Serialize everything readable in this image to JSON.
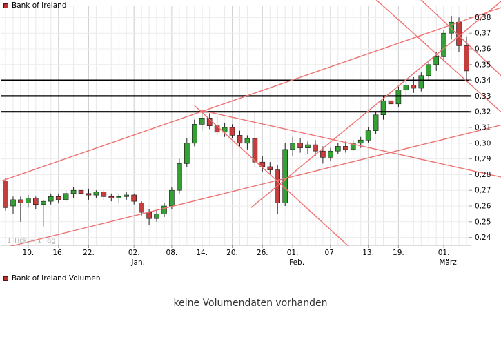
{
  "colors": {
    "up": "#35a135",
    "down": "#c43e3e",
    "wick": "#222222",
    "body_outline": "#1a1a1a",
    "grid_minor": "#e9e9e9",
    "grid_major": "#d2d2d2",
    "grid_horizontal": "#ececec",
    "axis_edge": "#bbbbbb",
    "level": "#000000",
    "trend": "#ee7272",
    "axis_text": "#000000",
    "note_text": "#b4b4b4",
    "swatch": "#bb2f2f"
  },
  "price_panel": {
    "legend": "Bank of Ireland",
    "tick_note": "1 Tick = 1 Tag"
  },
  "volume_panel": {
    "legend": "Bank of Ireland Volumen",
    "message": "keine Volumendaten vorhanden"
  },
  "chart_data": {
    "type": "candlestick",
    "title": "Bank of Ireland",
    "price_range": [
      0.235,
      0.385
    ],
    "grid": true,
    "legend_position": "top-left",
    "yticks": [
      {
        "v": 0.38,
        "label": "0,38"
      },
      {
        "v": 0.37,
        "label": "0,37"
      },
      {
        "v": 0.36,
        "label": "0,36"
      },
      {
        "v": 0.35,
        "label": "0,35"
      },
      {
        "v": 0.34,
        "label": "0,34"
      },
      {
        "v": 0.33,
        "label": "0,33"
      },
      {
        "v": 0.32,
        "label": "0,32"
      },
      {
        "v": 0.31,
        "label": "0,31"
      },
      {
        "v": 0.3,
        "label": "0,30"
      },
      {
        "v": 0.29,
        "label": "0,29"
      },
      {
        "v": 0.28,
        "label": "0,28"
      },
      {
        "v": 0.27,
        "label": "0,27"
      },
      {
        "v": 0.26,
        "label": "0,26"
      },
      {
        "v": 0.25,
        "label": "0,25"
      },
      {
        "v": 0.24,
        "label": "0,24"
      }
    ],
    "xticks": [
      {
        "i": 3,
        "label": "10."
      },
      {
        "i": 7,
        "label": "16."
      },
      {
        "i": 11,
        "label": "22."
      },
      {
        "i": 17,
        "label": "02.",
        "month": "Jan."
      },
      {
        "i": 22,
        "label": "08."
      },
      {
        "i": 26,
        "label": "14."
      },
      {
        "i": 30,
        "label": "20."
      },
      {
        "i": 34,
        "label": "26."
      },
      {
        "i": 38,
        "label": "01.",
        "month": "Feb."
      },
      {
        "i": 43,
        "label": "07."
      },
      {
        "i": 48,
        "label": "13."
      },
      {
        "i": 52,
        "label": "19."
      },
      {
        "i": 58,
        "label": "01.",
        "month": "März"
      }
    ],
    "levels": [
      0.34,
      0.33,
      0.32
    ],
    "trendlines": [
      {
        "i1": -0.5,
        "p1": 0.233,
        "i2": 66,
        "p2": 0.312
      },
      {
        "i1": -0.5,
        "p1": 0.276,
        "i2": 66,
        "p2": 0.387
      },
      {
        "i1": 32.5,
        "p1": 0.259,
        "i2": 66,
        "p2": 0.392
      },
      {
        "i1": 25.0,
        "p1": 0.324,
        "i2": 48,
        "p2": 0.223
      },
      {
        "i1": 47.5,
        "p1": 0.398,
        "i2": 66,
        "p2": 0.318
      },
      {
        "i1": 25.8,
        "p1": 0.321,
        "i2": 66,
        "p2": 0.278
      },
      {
        "i1": 53.5,
        "p1": 0.398,
        "i2": 66,
        "p2": 0.341
      }
    ],
    "candles": [
      [
        0.276,
        0.278,
        0.257,
        0.259
      ],
      [
        0.26,
        0.266,
        0.255,
        0.264
      ],
      [
        0.264,
        0.266,
        0.25,
        0.262
      ],
      [
        0.262,
        0.267,
        0.259,
        0.265
      ],
      [
        0.265,
        0.266,
        0.258,
        0.261
      ],
      [
        0.261,
        0.264,
        0.247,
        0.263
      ],
      [
        0.263,
        0.268,
        0.261,
        0.266
      ],
      [
        0.266,
        0.268,
        0.262,
        0.264
      ],
      [
        0.264,
        0.27,
        0.263,
        0.268
      ],
      [
        0.268,
        0.272,
        0.265,
        0.27
      ],
      [
        0.27,
        0.272,
        0.266,
        0.268
      ],
      [
        0.268,
        0.271,
        0.264,
        0.267
      ],
      [
        0.267,
        0.27,
        0.265,
        0.269
      ],
      [
        0.269,
        0.27,
        0.264,
        0.266
      ],
      [
        0.266,
        0.268,
        0.263,
        0.265
      ],
      [
        0.265,
        0.268,
        0.262,
        0.266
      ],
      [
        0.266,
        0.269,
        0.264,
        0.267
      ],
      [
        0.267,
        0.268,
        0.261,
        0.263
      ],
      [
        0.262,
        0.263,
        0.254,
        0.256
      ],
      [
        0.256,
        0.258,
        0.248,
        0.252
      ],
      [
        0.252,
        0.257,
        0.25,
        0.255
      ],
      [
        0.255,
        0.262,
        0.253,
        0.26
      ],
      [
        0.26,
        0.272,
        0.258,
        0.27
      ],
      [
        0.27,
        0.29,
        0.268,
        0.287
      ],
      [
        0.287,
        0.303,
        0.285,
        0.3
      ],
      [
        0.3,
        0.315,
        0.298,
        0.312
      ],
      [
        0.312,
        0.321,
        0.308,
        0.316
      ],
      [
        0.316,
        0.319,
        0.309,
        0.311
      ],
      [
        0.311,
        0.317,
        0.305,
        0.307
      ],
      [
        0.307,
        0.313,
        0.304,
        0.31
      ],
      [
        0.31,
        0.312,
        0.303,
        0.305
      ],
      [
        0.305,
        0.308,
        0.298,
        0.3
      ],
      [
        0.3,
        0.305,
        0.296,
        0.303
      ],
      [
        0.303,
        0.32,
        0.285,
        0.288
      ],
      [
        0.288,
        0.292,
        0.282,
        0.285
      ],
      [
        0.285,
        0.288,
        0.28,
        0.283
      ],
      [
        0.283,
        0.286,
        0.255,
        0.262
      ],
      [
        0.262,
        0.3,
        0.26,
        0.296
      ],
      [
        0.296,
        0.304,
        0.292,
        0.3
      ],
      [
        0.3,
        0.303,
        0.294,
        0.297
      ],
      [
        0.297,
        0.301,
        0.293,
        0.299
      ],
      [
        0.299,
        0.302,
        0.292,
        0.295
      ],
      [
        0.295,
        0.298,
        0.287,
        0.291
      ],
      [
        0.291,
        0.297,
        0.289,
        0.295
      ],
      [
        0.295,
        0.3,
        0.293,
        0.298
      ],
      [
        0.298,
        0.301,
        0.294,
        0.296
      ],
      [
        0.296,
        0.302,
        0.295,
        0.3
      ],
      [
        0.3,
        0.304,
        0.297,
        0.302
      ],
      [
        0.302,
        0.31,
        0.3,
        0.308
      ],
      [
        0.308,
        0.32,
        0.306,
        0.318
      ],
      [
        0.318,
        0.33,
        0.315,
        0.327
      ],
      [
        0.327,
        0.332,
        0.322,
        0.325
      ],
      [
        0.325,
        0.336,
        0.323,
        0.334
      ],
      [
        0.334,
        0.34,
        0.33,
        0.337
      ],
      [
        0.337,
        0.342,
        0.332,
        0.335
      ],
      [
        0.335,
        0.345,
        0.333,
        0.343
      ],
      [
        0.343,
        0.352,
        0.34,
        0.35
      ],
      [
        0.35,
        0.358,
        0.346,
        0.355
      ],
      [
        0.355,
        0.372,
        0.352,
        0.37
      ],
      [
        0.37,
        0.381,
        0.366,
        0.377
      ],
      [
        0.377,
        0.38,
        0.358,
        0.362
      ],
      [
        0.362,
        0.368,
        0.34,
        0.346
      ]
    ]
  }
}
